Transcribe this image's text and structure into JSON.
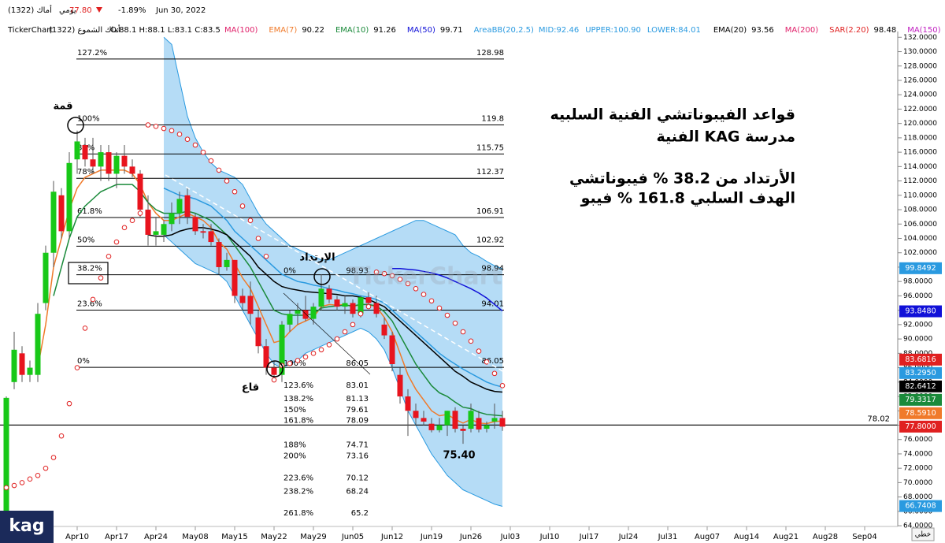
{
  "header": {
    "symbol": "أماك (1322)",
    "period": "يومي",
    "last": "77.80",
    "change": "-1.89%",
    "date": "Jun 30, 2022"
  },
  "legend": {
    "source": "TickerChart",
    "instrument": "أماك الشموع (1322)",
    "ohlc": "O:88.1 H:88.1 L:83.1 C:83.5"
  },
  "annotations": {
    "title": [
      "قواعد الفيبوناتشي الفنية السلبيه",
      "مدرسة KAG الفنية",
      "الأرتداد من 38.2 % فيبوناتشي",
      "الهدف السلبي 161.8 % فيبو"
    ],
    "peak": "قمة",
    "trough": "قاع",
    "retracement": "الإرتداد",
    "low": "75.40",
    "logo": "kag",
    "line_mode": "خطي",
    "watermark": "TickerChart"
  },
  "chart_data": {
    "type": "candlestick",
    "x": [
      0,
      1,
      2,
      3,
      4,
      5,
      6,
      7,
      8,
      9,
      10,
      11,
      12,
      13,
      14,
      15,
      16,
      17,
      18,
      19,
      20,
      21,
      22,
      23,
      24,
      25,
      26,
      27,
      28,
      29,
      30,
      31,
      32,
      33,
      34,
      35,
      36,
      37,
      38,
      39,
      40,
      41,
      42,
      43,
      44,
      45,
      46,
      47,
      48,
      49,
      50,
      51,
      52,
      53,
      54,
      55,
      56,
      57,
      58,
      59,
      60,
      61,
      62,
      63
    ],
    "open": [
      62,
      84,
      88,
      85,
      85,
      95,
      102,
      110,
      105,
      115,
      117,
      115,
      114,
      116,
      113,
      115.5,
      114,
      113,
      108,
      104.5,
      104.5,
      106,
      107.5,
      110,
      107,
      105,
      105,
      103.5,
      100,
      101,
      96,
      96,
      93,
      89,
      86,
      85,
      92,
      93.5,
      94,
      92.8,
      94.5,
      97,
      95.5,
      94.5,
      95,
      93.5,
      95.8,
      95,
      92,
      90.5,
      85,
      82,
      80,
      79,
      78.2,
      77.3,
      78,
      80,
      77.5,
      77.5,
      79,
      77.5,
      78.5,
      79
    ],
    "high": [
      82,
      91,
      89,
      87,
      95,
      103,
      112,
      111,
      116,
      119,
      118,
      118,
      117,
      117,
      116,
      117,
      115,
      113.5,
      110,
      107,
      106.5,
      109,
      110.5,
      111,
      107.5,
      106,
      106,
      104,
      102,
      101,
      97,
      98,
      94,
      90,
      87,
      92.5,
      94,
      95,
      96,
      95,
      99,
      97.5,
      96,
      96,
      95.5,
      96,
      96.5,
      96,
      93,
      91,
      86,
      83,
      81,
      80,
      79,
      79,
      80,
      80.5,
      78,
      81,
      80,
      78.5,
      81,
      80
    ],
    "low": [
      61.5,
      83,
      84,
      84,
      84,
      94,
      100,
      104,
      104,
      113,
      114,
      113,
      112,
      112,
      111,
      113,
      112.5,
      107,
      103,
      103,
      103.5,
      105,
      106,
      106,
      104.5,
      104,
      103,
      99,
      99.5,
      95,
      94,
      92,
      88,
      85,
      84.5,
      84,
      91,
      92,
      92.5,
      92,
      94,
      95,
      94,
      93.5,
      93,
      93,
      94.5,
      93,
      90,
      85.5,
      81,
      76.5,
      78,
      78,
      77,
      77,
      76.5,
      77,
      75.4,
      77,
      77,
      77,
      77.5,
      77.2
    ],
    "close": [
      81.8,
      88.5,
      85,
      86,
      93.5,
      102,
      110.5,
      105,
      114.5,
      117.5,
      115,
      114,
      116,
      113,
      115.5,
      114,
      113,
      108,
      104.5,
      105,
      106,
      107.5,
      109.5,
      107,
      105,
      104.8,
      103.5,
      100,
      101,
      96,
      95,
      93.5,
      89,
      86,
      85,
      92,
      93.5,
      94,
      92.8,
      94.5,
      97,
      95.5,
      94.5,
      95,
      93.5,
      95.8,
      95,
      93.5,
      90.5,
      86.5,
      82,
      80,
      79,
      78.5,
      77.3,
      78,
      80,
      77.5,
      77.2,
      80,
      77.4,
      78,
      79,
      77.8
    ],
    "up_color": "#18c818",
    "down_color": "#e8141e",
    "xlim": [
      -0.8,
      113.2
    ],
    "xticks": [
      {
        "value": 9,
        "label": "Apr10"
      },
      {
        "value": 14,
        "label": "Apr17"
      },
      {
        "value": 19,
        "label": "Apr24"
      },
      {
        "value": 24,
        "label": "May08"
      },
      {
        "value": 29,
        "label": "May15"
      },
      {
        "value": 34,
        "label": "May22"
      },
      {
        "value": 39,
        "label": "May29"
      },
      {
        "value": 44,
        "label": "Jun05"
      },
      {
        "value": 49,
        "label": "Jun12"
      },
      {
        "value": 54,
        "label": "Jun19"
      },
      {
        "value": 59,
        "label": "Jun26"
      },
      {
        "value": 64,
        "label": "Jul03"
      },
      {
        "value": 69,
        "label": "Jul10"
      },
      {
        "value": 74,
        "label": "Jul17"
      },
      {
        "value": 79,
        "label": "Jul24"
      },
      {
        "value": 84,
        "label": "Jul31"
      },
      {
        "value": 89,
        "label": "Aug07"
      },
      {
        "value": 94,
        "label": "Aug14"
      },
      {
        "value": 99,
        "label": "Aug21"
      },
      {
        "value": 104,
        "label": "Aug28"
      },
      {
        "value": 109,
        "label": "Sep04"
      }
    ],
    "ylim": [
      63.9,
      132.8
    ],
    "yticks": [
      {
        "value": 64,
        "label": "64.0000"
      },
      {
        "value": 66,
        "label": "66.0000"
      },
      {
        "value": 68,
        "label": "68.0000"
      },
      {
        "value": 70,
        "label": "70.0000"
      },
      {
        "value": 72,
        "label": "72.0000"
      },
      {
        "value": 74,
        "label": "74.0000"
      },
      {
        "value": 76,
        "label": "76.0000"
      },
      {
        "value": 78,
        "label": "78.0000"
      },
      {
        "value": 80,
        "label": "80.0000"
      },
      {
        "value": 82,
        "label": "82.0000"
      },
      {
        "value": 84,
        "label": "84.0000"
      },
      {
        "value": 86,
        "label": "86.0000"
      },
      {
        "value": 88,
        "label": "88.0000"
      },
      {
        "value": 90,
        "label": "90.0000"
      },
      {
        "value": 92,
        "label": "92.0000"
      },
      {
        "value": 94,
        "label": "94.0000"
      },
      {
        "value": 96,
        "label": "96.0000"
      },
      {
        "value": 98,
        "label": "98.0000"
      },
      {
        "value": 100,
        "label": "100.0000"
      },
      {
        "value": 102,
        "label": "102.0000"
      },
      {
        "value": 104,
        "label": "104.0000"
      },
      {
        "value": 106,
        "label": "106.0000"
      },
      {
        "value": 108,
        "label": "108.0000"
      },
      {
        "value": 110,
        "label": "110.0000"
      },
      {
        "value": 112,
        "label": "112.0000"
      },
      {
        "value": 114,
        "label": "114.0000"
      },
      {
        "value": 116,
        "label": "116.0000"
      },
      {
        "value": 118,
        "label": "118.0000"
      },
      {
        "value": 120,
        "label": "120.0000"
      },
      {
        "value": 122,
        "label": "122.0000"
      },
      {
        "value": 124,
        "label": "124.0000"
      },
      {
        "value": 126,
        "label": "126.0000"
      },
      {
        "value": 128,
        "label": "128.0000"
      },
      {
        "value": 130,
        "label": "130.0000"
      },
      {
        "value": 132,
        "label": "132.0000"
      }
    ],
    "indicators": [
      {
        "name": "MA(100)",
        "color": "#e0206a"
      },
      {
        "name": "EMA(7)",
        "value": "90.22",
        "color": "#f07a2a",
        "values": [
          null,
          null,
          null,
          null,
          86,
          92,
          100,
          104,
          108,
          111,
          112.5,
          113,
          113.5,
          113.5,
          113.5,
          113.5,
          113,
          111.5,
          109,
          107.5,
          106.5,
          106.5,
          107,
          107.5,
          107,
          106.5,
          105.5,
          103.5,
          102.5,
          100.5,
          98.5,
          97,
          94.5,
          92,
          89.5,
          89.8,
          91,
          92,
          92.5,
          93,
          94.5,
          94.8,
          94.7,
          94.8,
          94.5,
          94.8,
          94.8,
          94.5,
          93,
          91,
          88,
          85,
          83,
          81.5,
          80,
          79.3,
          79.5,
          78.8,
          78.3,
          78.8,
          78.3,
          78.2,
          78.5,
          78.6
        ]
      },
      {
        "name": "EMA(10)",
        "value": "91.26",
        "color": "#1a8a3a",
        "values": [
          null,
          null,
          null,
          null,
          null,
          null,
          96,
          100,
          104,
          107,
          108.5,
          109.5,
          110.5,
          111,
          111.5,
          111.5,
          111.5,
          110.5,
          109,
          108,
          107.5,
          107.5,
          107.5,
          107.8,
          107.5,
          107,
          106.5,
          105.5,
          104.5,
          103,
          101.5,
          100,
          98,
          96,
          94,
          93.5,
          93.3,
          93.3,
          93.3,
          93.5,
          94.3,
          94.5,
          94.6,
          94.7,
          94.6,
          94.8,
          94.8,
          94.6,
          93.8,
          92.5,
          90.5,
          88.5,
          86.5,
          85,
          83.5,
          82.5,
          82,
          81.2,
          80.5,
          80.3,
          79.8,
          79.5,
          79.4,
          79.3
        ]
      },
      {
        "name": "MA(50)",
        "value": "99.71",
        "color": "#1010d8",
        "values": [
          null,
          null,
          null,
          null,
          null,
          null,
          null,
          null,
          null,
          null,
          null,
          null,
          null,
          null,
          null,
          null,
          null,
          null,
          null,
          null,
          null,
          null,
          null,
          null,
          null,
          null,
          null,
          null,
          null,
          null,
          null,
          null,
          null,
          null,
          null,
          null,
          null,
          null,
          null,
          null,
          null,
          null,
          null,
          null,
          null,
          null,
          null,
          null,
          null,
          99.8,
          99.8,
          99.7,
          99.6,
          99.4,
          99.2,
          98.9,
          98.5,
          98,
          97.5,
          97,
          96.4,
          95.7,
          94.8,
          93.9
        ]
      },
      {
        "name": "AreaBB(20,2.5)",
        "color": "#2a9ae0",
        "fill": "#b5dcf6",
        "parts": [
          "MID:92.46",
          "UPPER:100.90",
          "LOWER:84.01"
        ],
        "mid": [
          null,
          null,
          null,
          null,
          null,
          null,
          null,
          null,
          null,
          null,
          null,
          null,
          null,
          null,
          null,
          null,
          null,
          null,
          null,
          null,
          111,
          110.5,
          110,
          109.8,
          109.5,
          109,
          108.5,
          107.5,
          106.5,
          105,
          104,
          103,
          102,
          101,
          100,
          99,
          98.5,
          98,
          97.8,
          97.5,
          97.3,
          97,
          96.8,
          96.5,
          96.3,
          96,
          95.8,
          95.5,
          95,
          94,
          93,
          92,
          91,
          90,
          89,
          88,
          87.2,
          86.5,
          85.8,
          85.2,
          84.6,
          84,
          83.6,
          83.3
        ],
        "upper": [
          null,
          null,
          null,
          null,
          null,
          null,
          null,
          null,
          null,
          null,
          null,
          null,
          null,
          null,
          null,
          null,
          null,
          null,
          null,
          null,
          132,
          131,
          126,
          121,
          118,
          116,
          114.5,
          113.5,
          113,
          112.5,
          111.5,
          109.5,
          107.5,
          106,
          105,
          104,
          103,
          102.5,
          102,
          101.5,
          101,
          101,
          101.5,
          102,
          102.5,
          103,
          103.5,
          104,
          104.5,
          105,
          105.5,
          106,
          106.5,
          106.5,
          106,
          105.5,
          105,
          104.5,
          103,
          102,
          101.5,
          100.8,
          100.2,
          99.8
        ],
        "lower": [
          null,
          null,
          null,
          null,
          null,
          null,
          null,
          null,
          null,
          null,
          null,
          null,
          null,
          null,
          null,
          null,
          null,
          null,
          null,
          null,
          104.5,
          103.5,
          102.5,
          101.5,
          100.5,
          100,
          99.5,
          99,
          98,
          96,
          94,
          92,
          90,
          88,
          86.5,
          86,
          86.5,
          87,
          88,
          88.5,
          89,
          89.5,
          90,
          90.5,
          91,
          91.5,
          91,
          90,
          88.5,
          86,
          83,
          80,
          78,
          76,
          74,
          72.5,
          71,
          70,
          69,
          68.5,
          68,
          67.5,
          67,
          66.7
        ]
      },
      {
        "name": "EMA(20)",
        "value": "93.56",
        "color": "#000000",
        "values": [
          null,
          null,
          null,
          null,
          null,
          null,
          null,
          null,
          null,
          null,
          null,
          null,
          null,
          null,
          null,
          null,
          null,
          null,
          104.5,
          104.3,
          104.3,
          104.5,
          105,
          105.3,
          105.5,
          105.5,
          105.3,
          105,
          104.5,
          103.5,
          102.5,
          101.5,
          100,
          99,
          98,
          97.3,
          97,
          96.8,
          96.6,
          96.5,
          96.4,
          96.3,
          96.2,
          96,
          96,
          95.8,
          95.5,
          95,
          94.5,
          93.5,
          92.5,
          91.5,
          90.5,
          89.5,
          88.5,
          87.5,
          86.5,
          85.5,
          84.8,
          84,
          83.5,
          83,
          82.7,
          82.6
        ]
      },
      {
        "name": "MA(200)",
        "color": "#e0206a"
      },
      {
        "name": "SAR(2.20)",
        "value": "98.48",
        "color": "#e02020",
        "style": "dots",
        "values": [
          69.3,
          69.6,
          70,
          70.5,
          71,
          72,
          73.5,
          76.5,
          81,
          86,
          91.5,
          95.5,
          98.5,
          101.5,
          103.5,
          105.5,
          106.5,
          107.5,
          119.8,
          119.6,
          119.3,
          119,
          118.5,
          117.8,
          117,
          116,
          114.8,
          113.5,
          112,
          110.5,
          108.5,
          106.5,
          104,
          101.5,
          84.3,
          86.3,
          86.6,
          87,
          87.5,
          88,
          88.5,
          89.2,
          90,
          91,
          92,
          93.5,
          94.5,
          99.3,
          99.1,
          98.8,
          98.3,
          97.7,
          97,
          96.2,
          95.3,
          94.3,
          93.3,
          92.2,
          91,
          89.7,
          88.3,
          86.8,
          85.2,
          83.5
        ]
      },
      {
        "name": "MA(150)",
        "color": "#c020c0"
      }
    ],
    "fib_levels": [
      {
        "label": "127.2%",
        "value": 128.98
      },
      {
        "label": "100%",
        "value": 119.8
      },
      {
        "label": "88%",
        "value": 115.75
      },
      {
        "label": "78%",
        "value": 112.37
      },
      {
        "label": "61.8%",
        "value": 106.91
      },
      {
        "label": "50%",
        "value": 102.92
      },
      {
        "label": "38.2%",
        "value": 98.94
      },
      {
        "label": "23.6%",
        "value": 94.01
      },
      {
        "label": "0%",
        "value": 86.05
      }
    ],
    "fib_targets": [
      {
        "label": "0%",
        "value": 98.93
      },
      {
        "label": "100%",
        "value": 86.05
      },
      {
        "label": "123.6%",
        "value": 83.01
      },
      {
        "label": "138.2%",
        "value": 81.13
      },
      {
        "label": "150%",
        "value": 79.61
      },
      {
        "label": "161.8%",
        "value": 78.09
      },
      {
        "label": "188%",
        "value": 74.71
      },
      {
        "label": "200%",
        "value": 73.16
      },
      {
        "label": "223.6%",
        "value": 70.12
      },
      {
        "label": "238.2%",
        "value": 68.24
      },
      {
        "label": "261.8%",
        "value": 65.2
      }
    ],
    "hline": {
      "value": 78.02,
      "color": "#000000"
    },
    "price_labels": [
      {
        "value": 99.8492,
        "color": "#2a9ae0"
      },
      {
        "value": 93.848,
        "label": "93.8480",
        "color": "#1010d8"
      },
      {
        "value": 83.6816,
        "color": "#e02020"
      },
      {
        "value": 83.295,
        "label": "83.2950",
        "color": "#2a9ae0"
      },
      {
        "value": 82.6412,
        "color": "#000000"
      },
      {
        "value": 79.3317,
        "color": "#1a8a3a"
      },
      {
        "value": 78.591,
        "label": "78.5910",
        "color": "#f07a2a"
      },
      {
        "value": 77.8,
        "label": "77.8000",
        "color": "#e02020"
      },
      {
        "value": 66.7408,
        "color": "#2a9ae0"
      }
    ]
  }
}
